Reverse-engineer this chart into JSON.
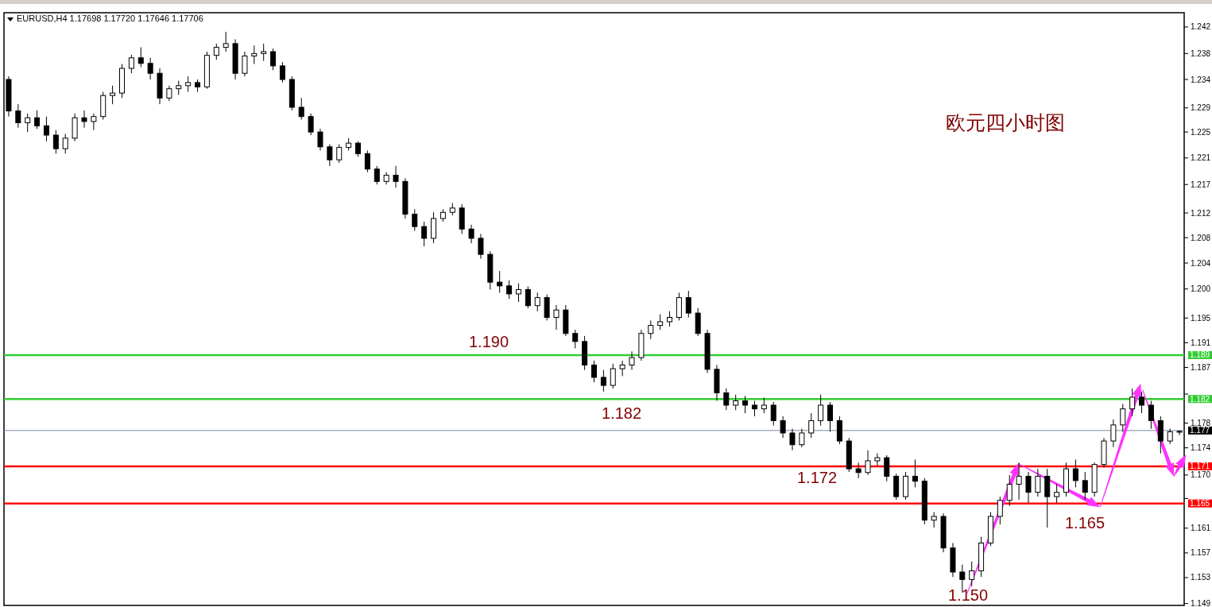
{
  "chart_data": {
    "type": "candlestick",
    "title": "EURUSD,H4  1.17698 1.17720 1.17646 1.17706",
    "categories": [
      null,
      null,
      null,
      null,
      null,
      null,
      null,
      null,
      null,
      null,
      null,
      null,
      null,
      null,
      null,
      null,
      null,
      null,
      null,
      null,
      null,
      null,
      null,
      null,
      null,
      null,
      null,
      null,
      null,
      null,
      null,
      null,
      null,
      null,
      null,
      null,
      null,
      null,
      null,
      null,
      null,
      null,
      null,
      null,
      null,
      null,
      null,
      null,
      null,
      null,
      null,
      null,
      null,
      null,
      null,
      null,
      null,
      null,
      null,
      null,
      null,
      null,
      null,
      null,
      null,
      null,
      null,
      null,
      null,
      null,
      null,
      null,
      null,
      null,
      null,
      null,
      null,
      null,
      null,
      null,
      null,
      null,
      null,
      null,
      null,
      null,
      null,
      null,
      null,
      null,
      null,
      null,
      null,
      null,
      null,
      null,
      null,
      null,
      null,
      null,
      null,
      null,
      null,
      null,
      null,
      null,
      null,
      null,
      null,
      null,
      null,
      null,
      null,
      null,
      null,
      null,
      null,
      null,
      null,
      null,
      null,
      null,
      null,
      null,
      null
    ],
    "ohlc": [
      [
        1.234,
        1.2345,
        1.228,
        1.2289
      ],
      [
        1.2289,
        1.23,
        1.2262,
        1.227
      ],
      [
        1.227,
        1.2285,
        1.2255,
        1.2278
      ],
      [
        1.2278,
        1.229,
        1.226,
        1.2265
      ],
      [
        1.2265,
        1.228,
        1.224,
        1.225
      ],
      [
        1.225,
        1.2258,
        1.222,
        1.2228
      ],
      [
        1.2228,
        1.2252,
        1.222,
        1.2245
      ],
      [
        1.2245,
        1.2285,
        1.224,
        1.2278
      ],
      [
        1.2278,
        1.229,
        1.2262,
        1.2272
      ],
      [
        1.2272,
        1.2285,
        1.2258,
        1.228
      ],
      [
        1.228,
        1.232,
        1.2275,
        1.2314
      ],
      [
        1.2314,
        1.233,
        1.23,
        1.2318
      ],
      [
        1.2318,
        1.2365,
        1.231,
        1.2358
      ],
      [
        1.2358,
        1.238,
        1.235,
        1.2375
      ],
      [
        1.2375,
        1.2392,
        1.236,
        1.2366
      ],
      [
        1.2366,
        1.2375,
        1.234,
        1.235
      ],
      [
        1.235,
        1.2358,
        1.23,
        1.231
      ],
      [
        1.231,
        1.233,
        1.2305,
        1.2325
      ],
      [
        1.2325,
        1.2338,
        1.2315,
        1.233
      ],
      [
        1.233,
        1.2345,
        1.232,
        1.2335
      ],
      [
        1.2335,
        1.234,
        1.232,
        1.2328
      ],
      [
        1.2328,
        1.2385,
        1.2325,
        1.2379
      ],
      [
        1.2379,
        1.2398,
        1.2372,
        1.2392
      ],
      [
        1.2392,
        1.2417,
        1.2385,
        1.2398
      ],
      [
        1.2398,
        1.2405,
        1.234,
        1.235
      ],
      [
        1.235,
        1.2385,
        1.2345,
        1.2378
      ],
      [
        1.2378,
        1.2395,
        1.2365,
        1.2382
      ],
      [
        1.2382,
        1.2398,
        1.237,
        1.2385
      ],
      [
        1.2385,
        1.239,
        1.2355,
        1.2362
      ],
      [
        1.2362,
        1.2368,
        1.2335,
        1.234
      ],
      [
        1.234,
        1.2345,
        1.229,
        1.2295
      ],
      [
        1.2295,
        1.231,
        1.2275,
        1.228
      ],
      [
        1.228,
        1.2285,
        1.225,
        1.2255
      ],
      [
        1.2255,
        1.226,
        1.2225,
        1.2231
      ],
      [
        1.2231,
        1.2235,
        1.22,
        1.221
      ],
      [
        1.221,
        1.2235,
        1.2205,
        1.223
      ],
      [
        1.223,
        1.2245,
        1.2225,
        1.2237
      ],
      [
        1.2237,
        1.224,
        1.2215,
        1.222
      ],
      [
        1.222,
        1.2225,
        1.219,
        1.2195
      ],
      [
        1.2195,
        1.22,
        1.217,
        1.2175
      ],
      [
        1.2175,
        1.219,
        1.217,
        1.2185
      ],
      [
        1.2185,
        1.22,
        1.2165,
        1.2175
      ],
      [
        1.2175,
        1.218,
        1.2115,
        1.2122
      ],
      [
        1.2122,
        1.213,
        1.2095,
        1.2102
      ],
      [
        1.2102,
        1.211,
        1.207,
        1.2083
      ],
      [
        1.2083,
        1.2125,
        1.2075,
        1.2115
      ],
      [
        1.2115,
        1.213,
        1.211,
        1.2125
      ],
      [
        1.2125,
        1.214,
        1.212,
        1.2132
      ],
      [
        1.2132,
        1.2138,
        1.209,
        1.2098
      ],
      [
        1.2098,
        1.2105,
        1.2075,
        1.2083
      ],
      [
        1.2083,
        1.209,
        1.205,
        1.2057
      ],
      [
        1.2057,
        1.2062,
        1.2,
        1.2012
      ],
      [
        1.2012,
        1.203,
        1.1995,
        1.2006
      ],
      [
        1.2006,
        1.2015,
        1.1985,
        1.1993
      ],
      [
        1.1993,
        1.201,
        1.198,
        1.2
      ],
      [
        1.2,
        1.2005,
        1.197,
        1.1974
      ],
      [
        1.1974,
        1.1995,
        1.1965,
        1.1987
      ],
      [
        1.1987,
        1.1992,
        1.195,
        1.1955
      ],
      [
        1.1955,
        1.1975,
        1.1935,
        1.1967
      ],
      [
        1.1967,
        1.1975,
        1.1925,
        1.1929
      ],
      [
        1.1929,
        1.1935,
        1.1905,
        1.1916
      ],
      [
        1.1916,
        1.1925,
        1.187,
        1.1878
      ],
      [
        1.1878,
        1.1885,
        1.185,
        1.1858
      ],
      [
        1.1858,
        1.187,
        1.1835,
        1.1845
      ],
      [
        1.1845,
        1.188,
        1.184,
        1.1872
      ],
      [
        1.1872,
        1.1885,
        1.186,
        1.1878
      ],
      [
        1.1878,
        1.19,
        1.187,
        1.189
      ],
      [
        1.189,
        1.1935,
        1.1885,
        1.1929
      ],
      [
        1.1929,
        1.195,
        1.192,
        1.1942
      ],
      [
        1.1942,
        1.196,
        1.1935,
        1.1948
      ],
      [
        1.1948,
        1.1965,
        1.194,
        1.1955
      ],
      [
        1.1955,
        1.1995,
        1.195,
        1.1987
      ],
      [
        1.1987,
        1.1998,
        1.1955,
        1.1962
      ],
      [
        1.1962,
        1.197,
        1.1925,
        1.1929
      ],
      [
        1.1929,
        1.1935,
        1.1865,
        1.1871
      ],
      [
        1.1871,
        1.1878,
        1.182,
        1.1833
      ],
      [
        1.1833,
        1.184,
        1.1805,
        1.1813
      ],
      [
        1.1813,
        1.183,
        1.1805,
        1.182
      ],
      [
        1.182,
        1.1828,
        1.18,
        1.1813
      ],
      [
        1.1813,
        1.182,
        1.1795,
        1.1807
      ],
      [
        1.1807,
        1.1825,
        1.18,
        1.1813
      ],
      [
        1.1813,
        1.1818,
        1.178,
        1.1788
      ],
      [
        1.1788,
        1.1795,
        1.176,
        1.1768
      ],
      [
        1.1768,
        1.1775,
        1.174,
        1.1749
      ],
      [
        1.1749,
        1.1775,
        1.1745,
        1.1768
      ],
      [
        1.1768,
        1.18,
        1.176,
        1.1788
      ],
      [
        1.1788,
        1.183,
        1.178,
        1.1813
      ],
      [
        1.1813,
        1.1818,
        1.177,
        1.1788
      ],
      [
        1.1788,
        1.1795,
        1.175,
        1.1755
      ],
      [
        1.1755,
        1.176,
        1.1705,
        1.171
      ],
      [
        1.171,
        1.172,
        1.1695,
        1.1704
      ],
      [
        1.1704,
        1.174,
        1.17,
        1.1723
      ],
      [
        1.1723,
        1.1735,
        1.1715,
        1.1728
      ],
      [
        1.1728,
        1.1732,
        1.169,
        1.1698
      ],
      [
        1.1698,
        1.1702,
        1.166,
        1.1665
      ],
      [
        1.1665,
        1.1705,
        1.166,
        1.1698
      ],
      [
        1.1698,
        1.1725,
        1.168,
        1.169
      ],
      [
        1.169,
        1.1695,
        1.162,
        1.1627
      ],
      [
        1.1627,
        1.164,
        1.1615,
        1.1633
      ],
      [
        1.1633,
        1.1638,
        1.1575,
        1.1582
      ],
      [
        1.1582,
        1.159,
        1.1535,
        1.1543
      ],
      [
        1.1543,
        1.1555,
        1.151,
        1.1531
      ],
      [
        1.1531,
        1.156,
        1.152,
        1.1545
      ],
      [
        1.1545,
        1.16,
        1.1535,
        1.159
      ],
      [
        1.159,
        1.164,
        1.1585,
        1.1633
      ],
      [
        1.1633,
        1.1665,
        1.162,
        1.1659
      ],
      [
        1.1659,
        1.17,
        1.165,
        1.1685
      ],
      [
        1.1685,
        1.172,
        1.166,
        1.1698
      ],
      [
        1.1698,
        1.1705,
        1.1655,
        1.1672
      ],
      [
        1.1672,
        1.171,
        1.1665,
        1.1698
      ],
      [
        1.1698,
        1.171,
        1.1615,
        1.1665
      ],
      [
        1.1665,
        1.1685,
        1.1655,
        1.1672
      ],
      [
        1.1672,
        1.172,
        1.1665,
        1.171
      ],
      [
        1.171,
        1.1725,
        1.168,
        1.1691
      ],
      [
        1.1691,
        1.1705,
        1.166,
        1.1672
      ],
      [
        1.1672,
        1.172,
        1.1665,
        1.1717
      ],
      [
        1.1717,
        1.176,
        1.1712,
        1.1755
      ],
      [
        1.1755,
        1.179,
        1.1745,
        1.1781
      ],
      [
        1.1781,
        1.1815,
        1.177,
        1.1807
      ],
      [
        1.1807,
        1.184,
        1.1795,
        1.1826
      ],
      [
        1.1826,
        1.1835,
        1.18,
        1.1813
      ],
      [
        1.1813,
        1.182,
        1.1775,
        1.1788
      ],
      [
        1.1788,
        1.1795,
        1.1735,
        1.1755
      ],
      [
        1.1755,
        1.1775,
        1.175,
        1.177
      ],
      [
        1.17698,
        1.1772,
        1.17646,
        1.17706
      ]
    ],
    "ylim": [
      1.1489,
      1.2448
    ],
    "yticks": [
      {
        "value": 1.1492,
        "label": "1.149"
      },
      {
        "value": 1.1534,
        "label": "1.153"
      },
      {
        "value": 1.1574,
        "label": "1.157"
      },
      {
        "value": 1.1614,
        "label": "1.161"
      },
      {
        "value": 1.1662,
        "label": null
      },
      {
        "value": 1.17,
        "label": "1.170"
      },
      {
        "value": 1.1744,
        "label": "1.174"
      },
      {
        "value": 1.1784,
        "label": "1.178"
      },
      {
        "value": 1.1831,
        "label": null
      },
      {
        "value": 1.1874,
        "label": "1.187"
      },
      {
        "value": 1.1914,
        "label": "1.191"
      },
      {
        "value": 1.1954,
        "label": "1.195"
      },
      {
        "value": 1.2001,
        "label": "1.200"
      },
      {
        "value": 1.2043,
        "label": "1.204"
      },
      {
        "value": 1.2084,
        "label": "1.208"
      },
      {
        "value": 1.2124,
        "label": "1.212"
      },
      {
        "value": 1.217,
        "label": "1.217"
      },
      {
        "value": 1.2213,
        "label": "1.221"
      },
      {
        "value": 1.2255,
        "label": "1.225"
      },
      {
        "value": 1.2294,
        "label": "1.229"
      },
      {
        "value": 1.234,
        "label": "1.234"
      },
      {
        "value": 1.2382,
        "label": "1.238"
      },
      {
        "value": 1.2425,
        "label": "1.242"
      }
    ],
    "ref_lines": [
      {
        "axis": "y",
        "value": 1.1894,
        "label": "1.189",
        "color": "#33cc33"
      },
      {
        "axis": "y",
        "value": 1.1823,
        "label": "1.182",
        "color": "#33cc33"
      },
      {
        "axis": "y",
        "value": 1.1772,
        "label": "1.177",
        "color": "#778899"
      },
      {
        "axis": "y",
        "value": 1.1714,
        "label": "1.171",
        "color": "#ff0000"
      },
      {
        "axis": "y",
        "value": 1.1654,
        "label": "1.165",
        "color": "#ff0000"
      }
    ],
    "annotations": [
      "欧元四小时图",
      "1.190",
      "1.182",
      "1.172",
      "1.165",
      "1.150"
    ]
  }
}
